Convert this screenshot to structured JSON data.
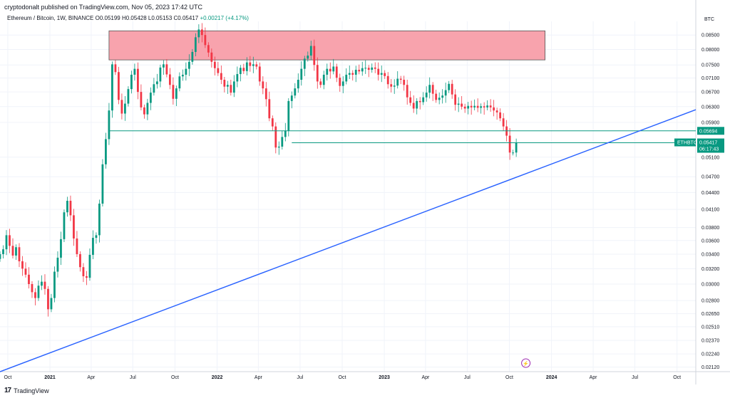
{
  "header": {
    "publisher_text": "cryptodonalt published on TradingView.com, Nov 05, 2023 17:42 UTC",
    "symbol_desc": "Ethereum / Bitcoin, 1W, BINANCE",
    "open": "O0.05199",
    "high": "H0.05428",
    "low": "L0.05153",
    "close": "C0.05417",
    "change": "+0.00217 (+4.17%)"
  },
  "footer": {
    "brand": "TradingView"
  },
  "currency_label": "BTC",
  "colors": {
    "up": "#089981",
    "down": "#f23645",
    "zone_fill": "#f8a3ad",
    "support": "#089981",
    "trendline": "#2962ff",
    "grid": "#f0f3fa",
    "axis_text": "#131722"
  },
  "chart_data": {
    "type": "candlestick",
    "symbol": "ETHBTC",
    "timeframe": "1W",
    "exchange": "BINANCE",
    "y_scale": "log",
    "ylim": [
      0.0208,
      0.09
    ],
    "y_ticks": [
      "0.08500",
      "0.08000",
      "0.07500",
      "0.07100",
      "0.06700",
      "0.06300",
      "0.05900",
      "0.05100",
      "0.04700",
      "0.04400",
      "0.04100",
      "0.03800",
      "0.03600",
      "0.03400",
      "0.03200",
      "0.03000",
      "0.02800",
      "0.02650",
      "0.02510",
      "0.02370",
      "0.02240",
      "0.02120"
    ],
    "x_range": [
      "2020-09-14",
      "2024-11-11"
    ],
    "x_ticks": [
      {
        "date": "2020-10-01",
        "label": "Oct",
        "bold": false
      },
      {
        "date": "2021-01-01",
        "label": "2021",
        "bold": true
      },
      {
        "date": "2021-04-01",
        "label": "Apr",
        "bold": false
      },
      {
        "date": "2021-07-01",
        "label": "Jul",
        "bold": false
      },
      {
        "date": "2021-10-01",
        "label": "Oct",
        "bold": false
      },
      {
        "date": "2022-01-01",
        "label": "2022",
        "bold": true
      },
      {
        "date": "2022-04-01",
        "label": "Apr",
        "bold": false
      },
      {
        "date": "2022-07-01",
        "label": "Jul",
        "bold": false
      },
      {
        "date": "2022-10-01",
        "label": "Oct",
        "bold": false
      },
      {
        "date": "2023-01-01",
        "label": "2023",
        "bold": true
      },
      {
        "date": "2023-04-01",
        "label": "Apr",
        "bold": false
      },
      {
        "date": "2023-07-01",
        "label": "Jul",
        "bold": false
      },
      {
        "date": "2023-10-01",
        "label": "Oct",
        "bold": false
      },
      {
        "date": "2024-01-01",
        "label": "2024",
        "bold": true
      },
      {
        "date": "2024-04-01",
        "label": "Apr",
        "bold": false
      },
      {
        "date": "2024-07-01",
        "label": "Jul",
        "bold": false
      },
      {
        "date": "2024-10-01",
        "label": "Oct",
        "bold": false
      }
    ],
    "candles_start": "2020-09-14",
    "candle_interval_days": 7,
    "closes": [
      0.034,
      0.0347,
      0.0368,
      0.0352,
      0.0338,
      0.035,
      0.033,
      0.032,
      0.0312,
      0.03,
      0.029,
      0.0283,
      0.0298,
      0.0303,
      0.0294,
      0.027,
      0.0283,
      0.0316,
      0.0335,
      0.0362,
      0.0405,
      0.0425,
      0.04,
      0.0363,
      0.034,
      0.0322,
      0.031,
      0.0308,
      0.0339,
      0.0364,
      0.0368,
      0.042,
      0.0495,
      0.055,
      0.062,
      0.0752,
      0.0728,
      0.0648,
      0.0612,
      0.0638,
      0.0678,
      0.072,
      0.0738,
      0.067,
      0.0628,
      0.061,
      0.064,
      0.0668,
      0.0692,
      0.07,
      0.0742,
      0.0752,
      0.0721,
      0.069,
      0.0651,
      0.068,
      0.0715,
      0.072,
      0.0738,
      0.076,
      0.0792,
      0.0842,
      0.087,
      0.085,
      0.0815,
      0.079,
      0.076,
      0.074,
      0.0725,
      0.0705,
      0.0685,
      0.069,
      0.0668,
      0.07,
      0.0722,
      0.0741,
      0.0731,
      0.0758,
      0.0747,
      0.0752,
      0.0745,
      0.07,
      0.068,
      0.065,
      0.06,
      0.058,
      0.0531,
      0.0533,
      0.0555,
      0.057,
      0.0645,
      0.066,
      0.068,
      0.0705,
      0.0738,
      0.077,
      0.078,
      0.0812,
      0.075,
      0.07,
      0.069,
      0.072,
      0.0738,
      0.073,
      0.0745,
      0.0711,
      0.0687,
      0.07,
      0.072,
      0.0725,
      0.072,
      0.0735,
      0.073,
      0.074,
      0.0741,
      0.0735,
      0.0742,
      0.0738,
      0.072,
      0.0725,
      0.0716,
      0.0692,
      0.0685,
      0.0688,
      0.0708,
      0.0705,
      0.069,
      0.0655,
      0.064,
      0.0625,
      0.0645,
      0.0642,
      0.0655,
      0.0668,
      0.069,
      0.0665,
      0.0648,
      0.0654,
      0.066,
      0.0675,
      0.0693,
      0.0663,
      0.0635,
      0.0638,
      0.063,
      0.0625,
      0.0632,
      0.0628,
      0.0632,
      0.0627,
      0.0631,
      0.0628,
      0.0633,
      0.0628,
      0.062,
      0.0615,
      0.06,
      0.058,
      0.0558,
      0.052,
      0.052,
      0.0542
    ],
    "resistance_zone": {
      "x_start": "2021-05-10",
      "x_end": "2023-12-18",
      "y_low": 0.0766,
      "y_high": 0.0865
    },
    "support_lines": [
      {
        "price": 0.05694,
        "x_start": "2021-05-10",
        "label": "0.05694"
      },
      {
        "price": 0.05417,
        "x_start": "2022-06-13",
        "label": "0.05417"
      }
    ],
    "trendline": {
      "x1": "2020-09-14",
      "y1": 0.0208,
      "x2": "2024-11-11",
      "y2": 0.0622
    },
    "last_price": {
      "symbol_tag": "ETHBTC",
      "price": "0.05417",
      "countdown": "06:17:43"
    }
  }
}
